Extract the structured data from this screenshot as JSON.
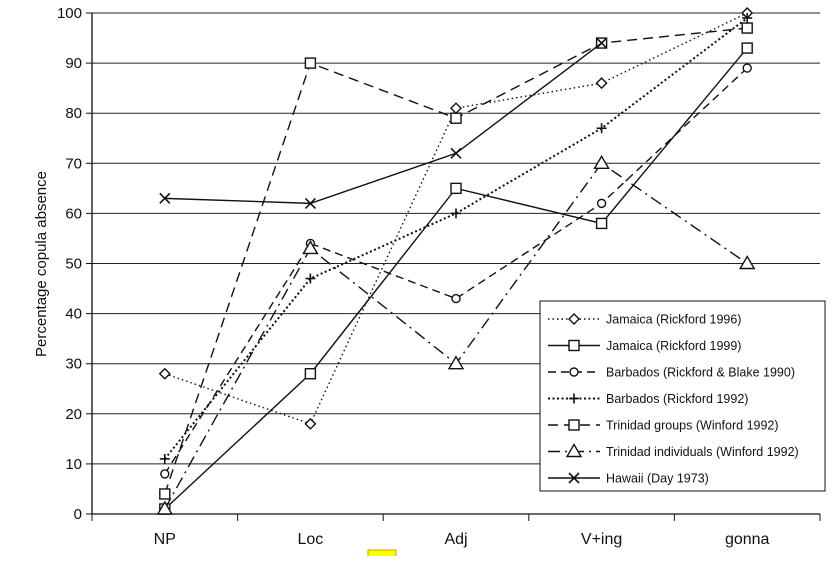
{
  "chart_data": {
    "type": "line",
    "title": "",
    "xlabel": "",
    "ylabel": "Percentage copula absence",
    "categories": [
      "NP",
      "Loc",
      "Adj",
      "V+ing",
      "gonna"
    ],
    "ylim": [
      0,
      100
    ],
    "yticks": [
      0,
      10,
      20,
      30,
      40,
      50,
      60,
      70,
      80,
      90,
      100
    ],
    "grid": "horizontal",
    "legend_position": "bottom-right",
    "series": [
      {
        "name": "Jamaica (Rickford 1996)",
        "values": [
          28,
          18,
          81,
          86,
          100
        ],
        "marker": "diamond",
        "dash": "dotted-fine"
      },
      {
        "name": "Jamaica (Rickford 1999)",
        "values": [
          1,
          28,
          65,
          58,
          93
        ],
        "marker": "square",
        "dash": "solid"
      },
      {
        "name": "Barbados (Rickford & Blake 1990)",
        "values": [
          8,
          54,
          43,
          62,
          89
        ],
        "marker": "circle",
        "dash": "dashed"
      },
      {
        "name": "Barbados (Rickford 1992)",
        "values": [
          11,
          47,
          60,
          77,
          99
        ],
        "marker": "plus",
        "dash": "dotted"
      },
      {
        "name": "Trinidad groups (Winford 1992)",
        "values": [
          4,
          90,
          79,
          94,
          97
        ],
        "marker": "square",
        "dash": "long-dash"
      },
      {
        "name": "Trinidad individuals (Winford 1992)",
        "values": [
          1,
          53,
          30,
          70,
          50
        ],
        "marker": "triangle",
        "dash": "dash-dot"
      },
      {
        "name": "Hawaii (Day 1973)",
        "values": [
          63,
          62,
          72,
          94,
          null
        ],
        "marker": "x",
        "dash": "solid"
      }
    ]
  }
}
